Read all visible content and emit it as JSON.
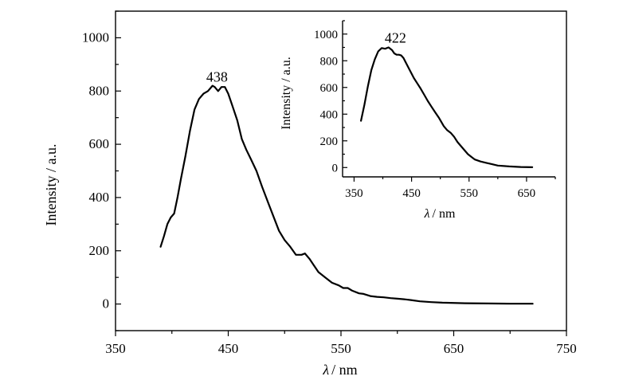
{
  "chart_data": [
    {
      "type": "line",
      "panel": "main",
      "xlabel": {
        "symbol": "λ",
        "unit": "/ nm"
      },
      "ylabel": "Intensity / a.u.",
      "xlim": [
        350,
        750
      ],
      "ylim": [
        -100,
        1100
      ],
      "x_ticks": [
        350,
        450,
        550,
        650,
        750
      ],
      "y_ticks": [
        0,
        200,
        400,
        600,
        800,
        1000
      ],
      "annotation": {
        "text": "438",
        "x": 440,
        "y": 835
      },
      "series": [
        {
          "x": [
            390,
            393,
            396,
            399,
            402,
            405,
            408,
            412,
            416,
            420,
            424,
            428,
            432,
            436,
            438,
            441,
            444,
            447,
            450,
            454,
            458,
            462,
            466,
            470,
            475,
            480,
            485,
            490,
            495,
            500,
            505,
            510,
            515,
            518,
            522,
            526,
            530,
            536,
            542,
            548,
            552,
            556,
            560,
            566,
            570,
            576,
            582,
            588,
            594,
            600,
            606,
            612,
            620,
            630,
            640,
            660,
            680,
            700,
            720
          ],
          "y": [
            215,
            255,
            300,
            325,
            340,
            400,
            470,
            555,
            650,
            730,
            770,
            790,
            800,
            820,
            815,
            800,
            815,
            815,
            790,
            740,
            690,
            620,
            580,
            545,
            500,
            440,
            385,
            330,
            275,
            240,
            215,
            185,
            185,
            190,
            170,
            145,
            120,
            100,
            80,
            70,
            60,
            60,
            50,
            40,
            38,
            30,
            27,
            25,
            22,
            20,
            18,
            15,
            10,
            7,
            5,
            3,
            2,
            1,
            1
          ]
        }
      ]
    },
    {
      "type": "line",
      "panel": "inset",
      "xlabel": {
        "symbol": "λ",
        "unit": "/ nm"
      },
      "ylabel": "Intensity / a.u.",
      "xlim": [
        330,
        700
      ],
      "ylim": [
        -70,
        1100
      ],
      "x_ticks": [
        350,
        450,
        550,
        650
      ],
      "y_ticks": [
        0,
        200,
        400,
        600,
        800,
        1000
      ],
      "annotation": {
        "text": "422",
        "x": 422,
        "y": 935
      },
      "series": [
        {
          "x": [
            362,
            368,
            374,
            380,
            386,
            392,
            398,
            404,
            410,
            416,
            420,
            424,
            428,
            432,
            436,
            442,
            448,
            454,
            460,
            466,
            472,
            478,
            484,
            490,
            498,
            506,
            512,
            518,
            524,
            530,
            536,
            542,
            548,
            554,
            560,
            570,
            580,
            590,
            600,
            620,
            640,
            660
          ],
          "y": [
            350,
            470,
            610,
            730,
            810,
            870,
            895,
            890,
            900,
            880,
            855,
            845,
            845,
            840,
            820,
            770,
            720,
            670,
            630,
            590,
            545,
            500,
            460,
            420,
            370,
            310,
            280,
            260,
            230,
            190,
            160,
            130,
            100,
            80,
            60,
            45,
            35,
            25,
            15,
            8,
            4,
            2
          ]
        }
      ]
    }
  ]
}
